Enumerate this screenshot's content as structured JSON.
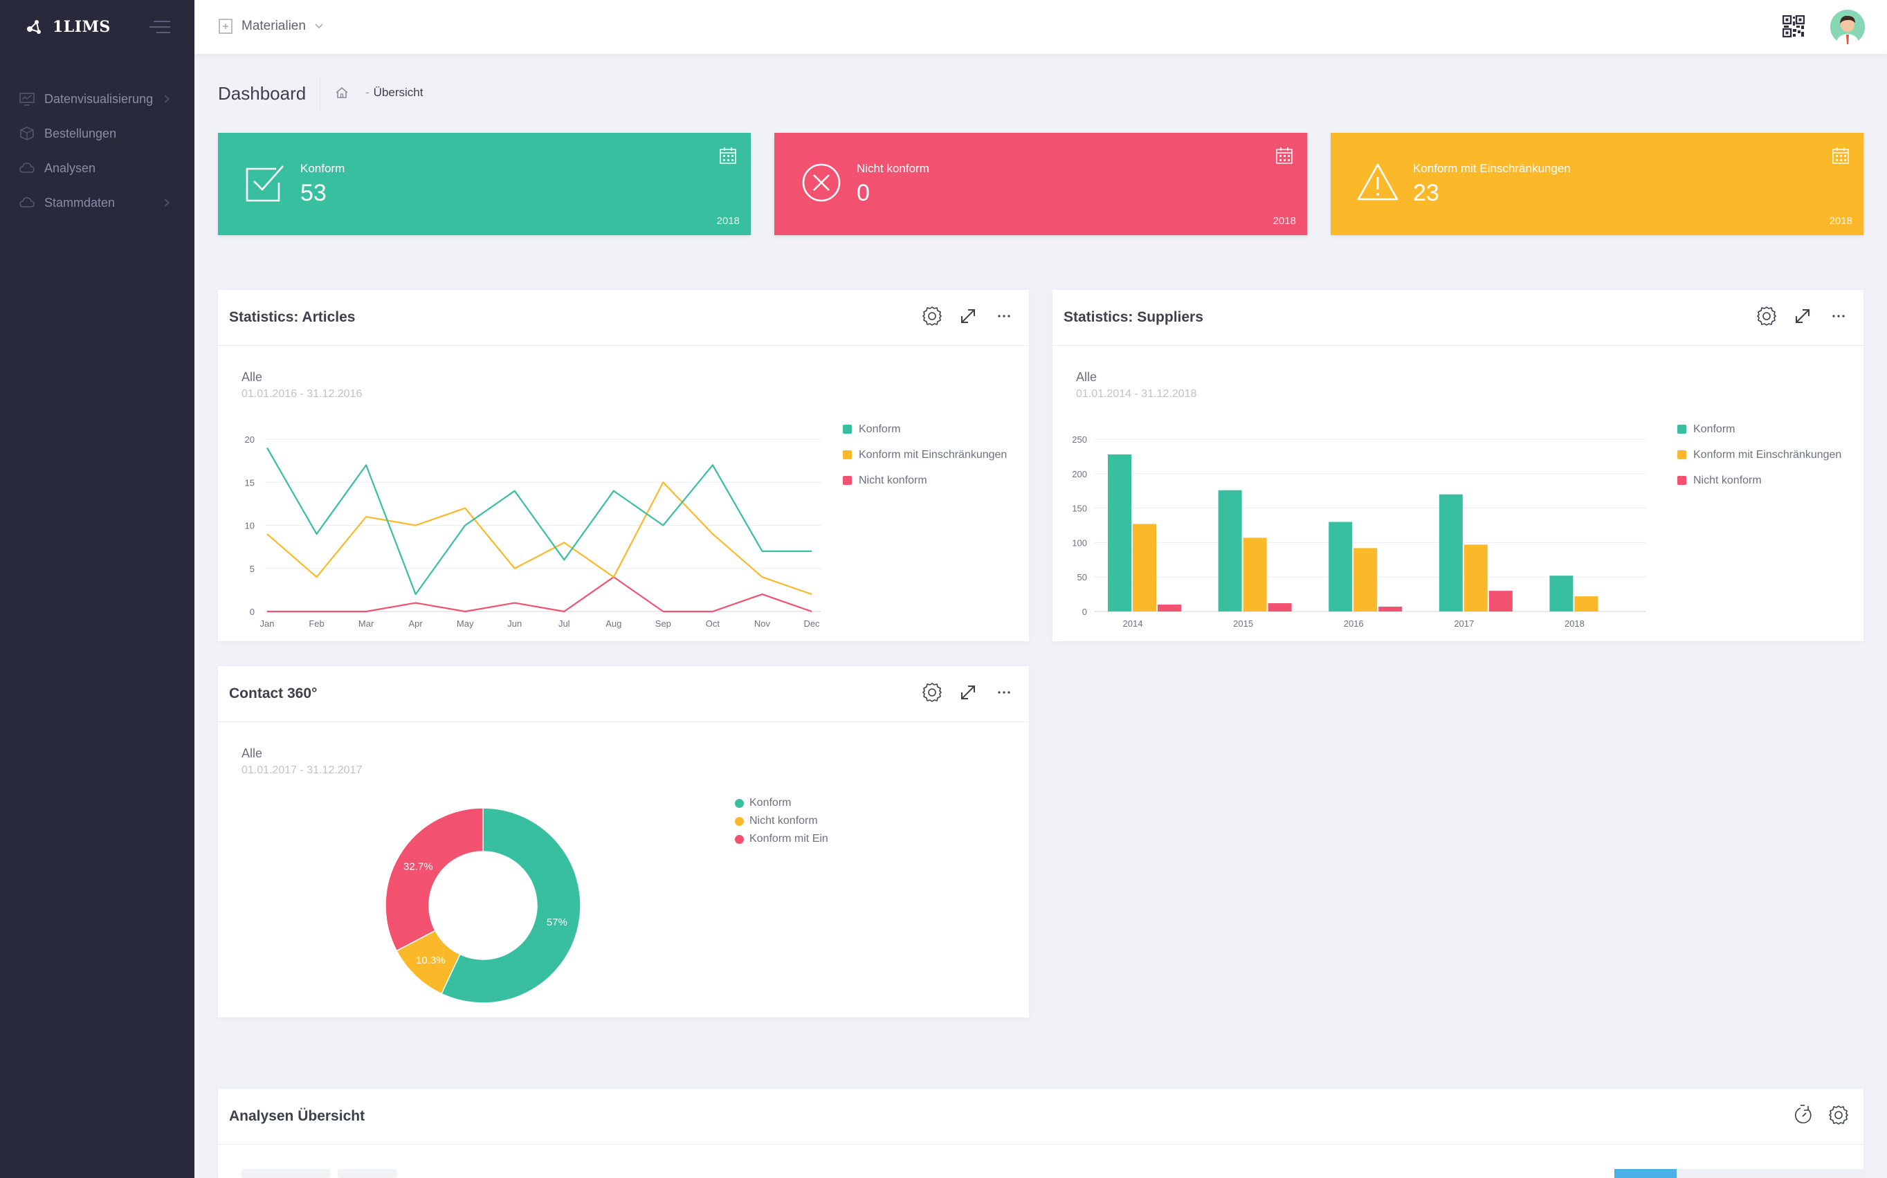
{
  "app": {
    "brand": "1LIMS"
  },
  "colors": {
    "green": "#38bf9f",
    "yellow": "#fbb929",
    "red": "#f2526f",
    "sidebar": "#282a3c"
  },
  "sidebar": {
    "items": [
      {
        "label": "Datenvisualisierung",
        "icon": "monitor-icon",
        "has_submenu": true
      },
      {
        "label": "Bestellungen",
        "icon": "box-icon",
        "has_submenu": false
      },
      {
        "label": "Analysen",
        "icon": "cloud-icon",
        "has_submenu": false
      },
      {
        "label": "Stammdaten",
        "icon": "cloud-icon",
        "has_submenu": true
      }
    ]
  },
  "topbar": {
    "module_label": "Materialien"
  },
  "subheader": {
    "title": "Dashboard",
    "breadcrumb": "Übersicht"
  },
  "tiles": [
    {
      "label": "Konform",
      "value": "53",
      "year": "2018",
      "color": "#38bf9f",
      "icon": "check-icon"
    },
    {
      "label": "Nicht konform",
      "value": "0",
      "year": "2018",
      "color": "#f2526f",
      "icon": "x-circle-icon"
    },
    {
      "label": "Konform mit Einschränkungen",
      "value": "23",
      "year": "2018",
      "color": "#fbb929",
      "icon": "warning-icon"
    }
  ],
  "articles": {
    "title": "Statistics: Articles",
    "scope": "Alle",
    "daterange": "01.01.2016 - 31.12.2016",
    "legend": [
      "Konform",
      "Konform mit Einschränkungen",
      "Nicht konform"
    ]
  },
  "suppliers": {
    "title": "Statistics: Suppliers",
    "scope": "Alle",
    "daterange": "01.01.2014 - 31.12.2018",
    "legend": [
      "Konform",
      "Konform mit Einschränkungen",
      "Nicht konform"
    ]
  },
  "contact": {
    "title": "Contact 360°",
    "scope": "Alle",
    "daterange": "01.01.2017 - 31.12.2017",
    "legend": [
      "Konform",
      "Nicht konform",
      "Konform mit Ein"
    ]
  },
  "analysen": {
    "title": "Analysen Übersicht"
  },
  "chart_data": [
    {
      "type": "line",
      "categories": [
        "Jan",
        "Feb",
        "Mar",
        "Apr",
        "May",
        "Jun",
        "Jul",
        "Aug",
        "Sep",
        "Oct",
        "Nov",
        "Dec"
      ],
      "ylim": [
        0,
        20
      ],
      "yticks": [
        0,
        5,
        10,
        15,
        20
      ],
      "grid": true,
      "legend_position": "right",
      "series": [
        {
          "name": "Konform",
          "color": "#38bf9f",
          "values": [
            19,
            9,
            17,
            2,
            10,
            14,
            6,
            14,
            10,
            17,
            7,
            7
          ]
        },
        {
          "name": "Konform mit Einschränkungen",
          "color": "#fbb929",
          "values": [
            9,
            4,
            11,
            10,
            12,
            5,
            8,
            4,
            15,
            9,
            4,
            2
          ]
        },
        {
          "name": "Nicht konform",
          "color": "#f2526f",
          "values": [
            0,
            0,
            0,
            1,
            0,
            1,
            0,
            4,
            0,
            0,
            2,
            0
          ]
        }
      ]
    },
    {
      "type": "bar",
      "categories": [
        "2014",
        "2015",
        "2016",
        "2017",
        "2018"
      ],
      "ylim": [
        0,
        250
      ],
      "yticks": [
        0,
        50,
        100,
        150,
        200,
        250
      ],
      "grid": true,
      "legend_position": "right",
      "series": [
        {
          "name": "Konform",
          "color": "#38bf9f",
          "values": [
            228,
            176,
            130,
            170,
            52
          ]
        },
        {
          "name": "Konform mit Einschränkungen",
          "color": "#fbb929",
          "values": [
            127,
            107,
            92,
            97,
            22
          ]
        },
        {
          "name": "Nicht konform",
          "color": "#f2526f",
          "values": [
            10,
            12,
            7,
            30,
            0
          ]
        }
      ]
    },
    {
      "type": "pie",
      "donut": true,
      "legend_position": "right",
      "slices": [
        {
          "name": "Konform",
          "value": 57,
          "label": "57%",
          "color": "#38bf9f"
        },
        {
          "name": "Nicht konform",
          "value": 10.3,
          "label": "10.3%",
          "color": "#fbb929"
        },
        {
          "name": "Konform mit Ein",
          "value": 32.7,
          "label": "32.7%",
          "color": "#f2526f"
        }
      ]
    }
  ]
}
